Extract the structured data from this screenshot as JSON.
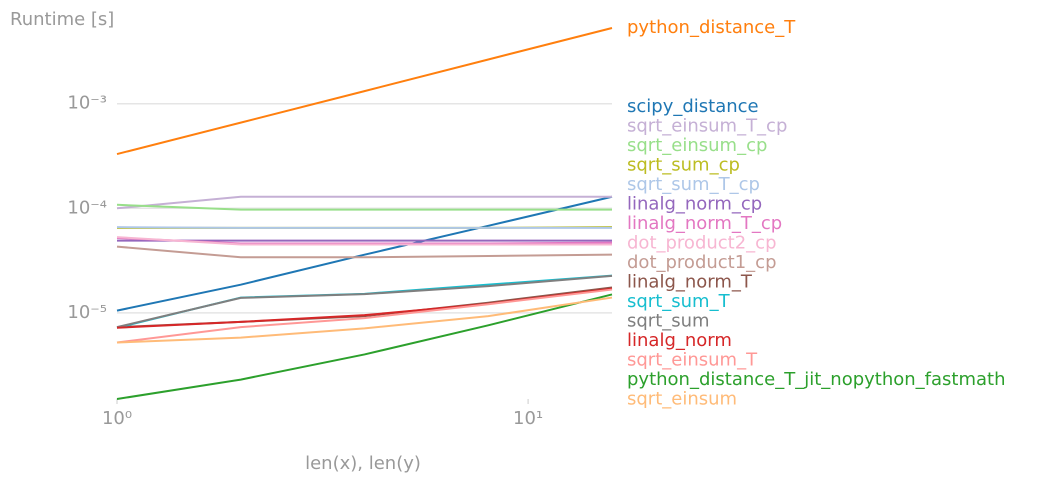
{
  "chart_data": {
    "type": "line",
    "xlabel": "len(x), len(y)",
    "ylabel": "Runtime [s]",
    "x": [
      1,
      2,
      4,
      8,
      16
    ],
    "xlim": [
      1,
      16
    ],
    "ylim": [
      1.5e-06,
      0.0053
    ],
    "xscale": "log",
    "yscale": "log",
    "grid": true,
    "xticks": [
      {
        "value": 1,
        "label": "10⁰"
      },
      {
        "value": 10,
        "label": "10¹"
      }
    ],
    "yticks": [
      {
        "value": 1e-05,
        "label": "10⁻⁵"
      },
      {
        "value": 0.0001,
        "label": "10⁻⁴"
      },
      {
        "value": 0.001,
        "label": "10⁻³"
      }
    ],
    "series": [
      {
        "name": "python_distance_T",
        "color": "#ff7f0e",
        "values": [
          0.00033,
          0.00066,
          0.00132,
          0.00265,
          0.0053
        ]
      },
      {
        "name": "scipy_distance",
        "color": "#1f77b4",
        "values": [
          1.05e-05,
          1.86e-05,
          3.6e-05,
          6.8e-05,
          0.000129
        ]
      },
      {
        "name": "sqrt_einsum_T_cp",
        "color": "#c5b0d5",
        "values": [
          0.0001,
          0.000129,
          0.000129,
          0.000129,
          0.000129
        ]
      },
      {
        "name": "sqrt_einsum_cp",
        "color": "#98df8a",
        "values": [
          0.000108,
          9.7e-05,
          9.7e-05,
          9.7e-05,
          9.7e-05
        ]
      },
      {
        "name": "sqrt_sum_cp",
        "color": "#bcbd22",
        "values": [
          6.5e-05,
          6.5e-05,
          6.5e-05,
          6.5e-05,
          6.6e-05
        ]
      },
      {
        "name": "sqrt_sum_T_cp",
        "color": "#aec7e8",
        "values": [
          6.6e-05,
          6.5e-05,
          6.5e-05,
          6.5e-05,
          6.5e-05
        ]
      },
      {
        "name": "linalg_norm_cp",
        "color": "#9467bd",
        "values": [
          4.9e-05,
          4.9e-05,
          4.9e-05,
          4.9e-05,
          4.9e-05
        ]
      },
      {
        "name": "linalg_norm_T_cp",
        "color": "#e377c2",
        "values": [
          5.2e-05,
          4.6e-05,
          4.6e-05,
          4.6e-05,
          4.7e-05
        ]
      },
      {
        "name": "dot_product2_cp",
        "color": "#f7b6d2",
        "values": [
          5.3e-05,
          4.5e-05,
          4.5e-05,
          4.5e-05,
          4.5e-05
        ]
      },
      {
        "name": "dot_product1_cp",
        "color": "#c49c94",
        "values": [
          4.3e-05,
          3.4e-05,
          3.4e-05,
          3.5e-05,
          3.6e-05
        ]
      },
      {
        "name": "linalg_norm_T",
        "color": "#8c564b",
        "values": [
          7.3e-06,
          8.2e-06,
          9.3e-06,
          1.25e-05,
          1.75e-05
        ]
      },
      {
        "name": "sqrt_sum_T",
        "color": "#17becf",
        "values": [
          7.2e-06,
          1.4e-05,
          1.52e-05,
          1.86e-05,
          2.27e-05
        ]
      },
      {
        "name": "sqrt_sum",
        "color": "#7f7f7f",
        "values": [
          7.3e-06,
          1.39e-05,
          1.51e-05,
          1.8e-05,
          2.26e-05
        ]
      },
      {
        "name": "linalg_norm",
        "color": "#d62728",
        "values": [
          7.2e-06,
          8.2e-06,
          9.5e-06,
          1.22e-05,
          1.7e-05
        ]
      },
      {
        "name": "sqrt_einsum_T",
        "color": "#ff9896",
        "values": [
          5.2e-06,
          7.3e-06,
          8.9e-06,
          1.21e-05,
          1.67e-05
        ]
      },
      {
        "name": "python_distance_T_jit_nopython_fastmath",
        "color": "#2ca02c",
        "values": [
          1.5e-06,
          2.3e-06,
          4e-06,
          7.6e-06,
          1.5e-05
        ]
      },
      {
        "name": "sqrt_einsum",
        "color": "#ffbb78",
        "values": [
          5.2e-06,
          5.8e-06,
          7.1e-06,
          9.3e-06,
          1.4e-05
        ]
      }
    ]
  }
}
